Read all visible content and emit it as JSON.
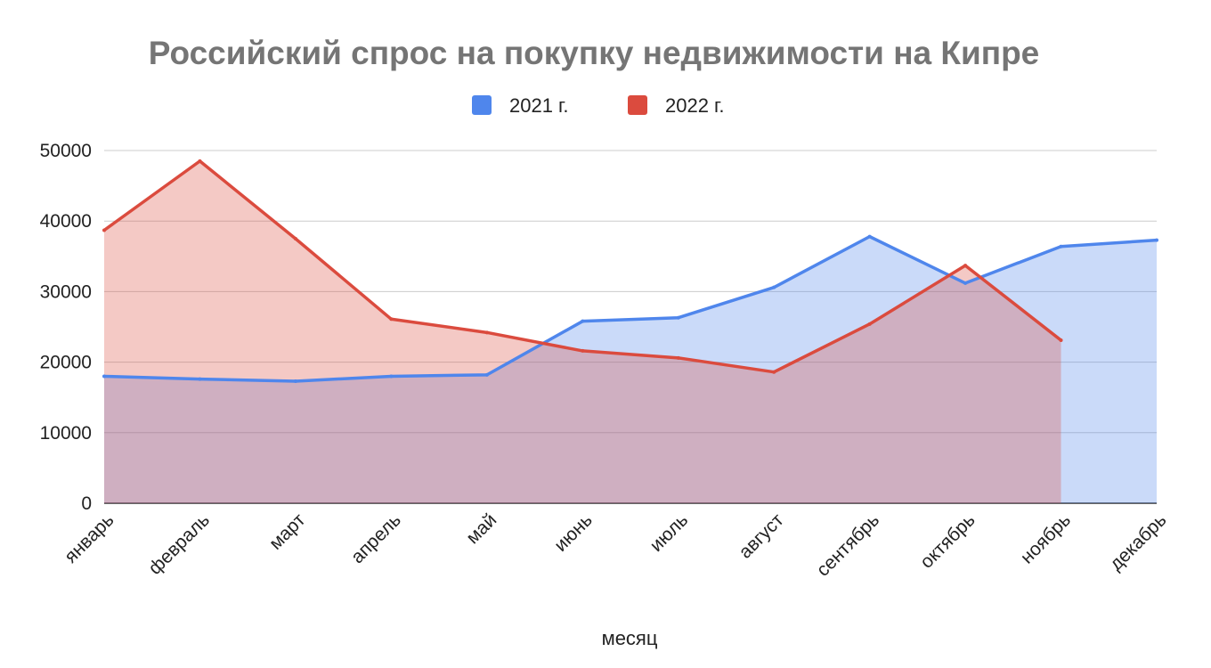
{
  "chart_data": {
    "type": "area",
    "title": "Российский спрос на покупку недвижимости на Кипре",
    "xlabel": "месяц",
    "ylabel": "",
    "ylim": [
      0,
      50000
    ],
    "yticks": [
      "0",
      "10000",
      "20000",
      "30000",
      "40000",
      "50000"
    ],
    "grid": true,
    "legend_position": "top-center",
    "categories": [
      "январь",
      "февраль",
      "март",
      "апрель",
      "май",
      "июнь",
      "июль",
      "август",
      "сентябрь",
      "октябрь",
      "ноябрь",
      "декабрь"
    ],
    "series": [
      {
        "name": "2021 г.",
        "color": "#4f86ec",
        "values": [
          18000,
          17600,
          17300,
          18000,
          18200,
          25800,
          26300,
          30600,
          37800,
          31200,
          36400,
          37300
        ]
      },
      {
        "name": "2022 г.",
        "color": "#db4b3e",
        "values": [
          38700,
          48500,
          37500,
          26100,
          24200,
          21600,
          20600,
          18600,
          25400,
          33700,
          23100,
          null
        ]
      }
    ]
  }
}
